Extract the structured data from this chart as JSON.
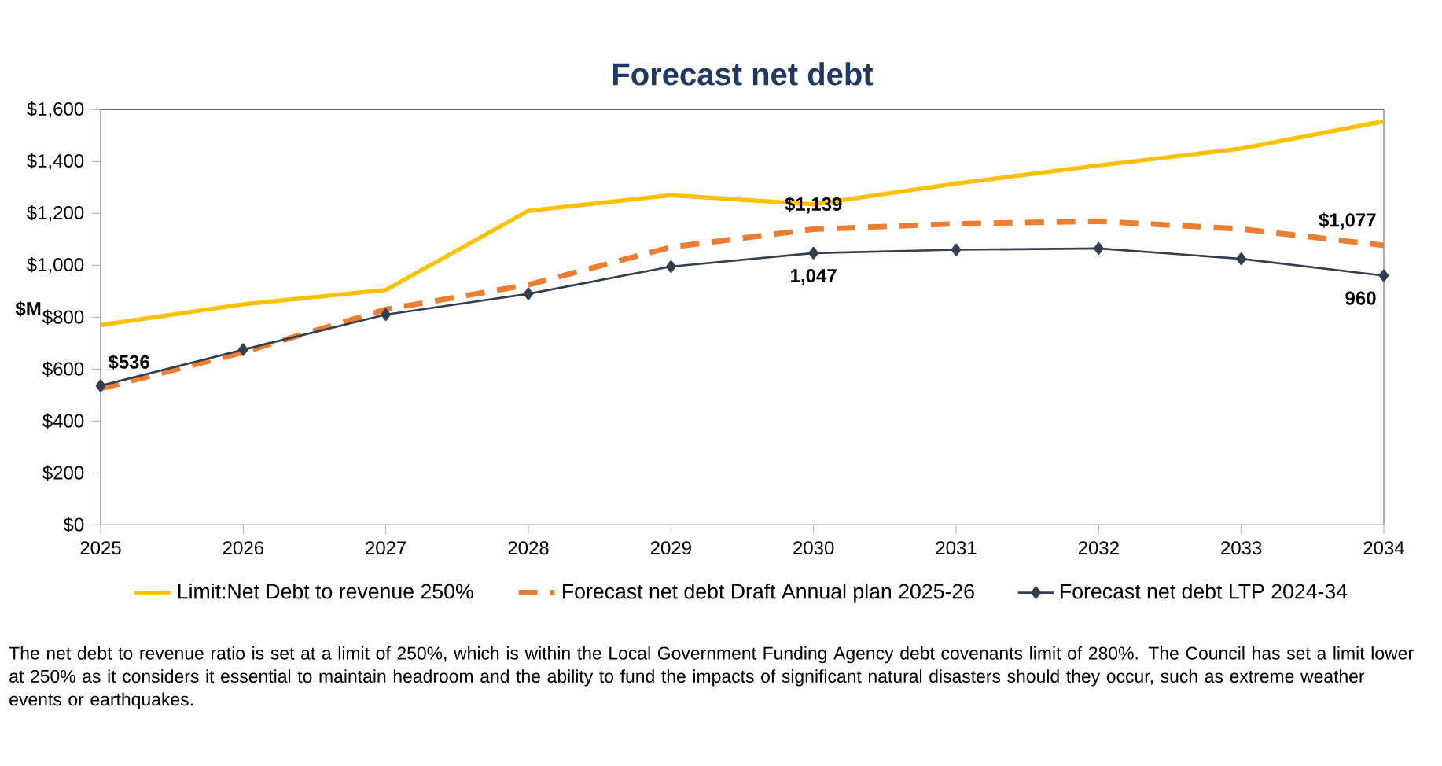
{
  "chart_data": {
    "type": "line",
    "title": "Forecast net debt",
    "ylabel": "$M",
    "categories": [
      "2025",
      "2026",
      "2027",
      "2028",
      "2029",
      "2030",
      "2031",
      "2032",
      "2033",
      "2034"
    ],
    "series": [
      {
        "name": "Limit:Net Debt to revenue 250%",
        "color": "#ffc000",
        "line_style": "solid",
        "marker": "none",
        "values": [
          770,
          850,
          905,
          1210,
          1270,
          1235,
          1315,
          1385,
          1450,
          1555
        ]
      },
      {
        "name": "Forecast net debt Draft Annual plan 2025-26",
        "color": "#ed7d31",
        "line_style": "dashed",
        "marker": "none",
        "values": [
          525,
          665,
          830,
          925,
          1070,
          1139,
          1160,
          1170,
          1140,
          1077
        ],
        "value_labels": [
          null,
          null,
          null,
          null,
          null,
          "$1,139",
          null,
          null,
          null,
          "$1,077"
        ]
      },
      {
        "name": "Forecast net debt LTP 2024-34",
        "color": "#333f50",
        "line_style": "solid",
        "marker": "diamond",
        "values": [
          536,
          675,
          810,
          890,
          995,
          1047,
          1060,
          1065,
          1025,
          960
        ],
        "value_labels": [
          "$536",
          null,
          null,
          null,
          null,
          "1,047",
          null,
          null,
          null,
          "960"
        ]
      }
    ],
    "ylim": [
      0,
      1600
    ],
    "yticks": [
      {
        "value": 0,
        "label": "$0"
      },
      {
        "value": 200,
        "label": "$200"
      },
      {
        "value": 400,
        "label": "$400"
      },
      {
        "value": 600,
        "label": "$600"
      },
      {
        "value": 800,
        "label": "$800"
      },
      {
        "value": 1000,
        "label": "$1,000"
      },
      {
        "value": 1200,
        "label": "$1,200"
      },
      {
        "value": 1400,
        "label": "$1,400"
      },
      {
        "value": 1600,
        "label": "$1,600"
      }
    ],
    "grid": false,
    "legend": "bottom",
    "annotations": [
      "The net debt to revenue ratio is set at a limit of 250%, which is within the Local Government Funding Agency debt covenants limit of 280%. The Council has set a limit lower at 250% as it considers it essential to maintain headroom and the ability to fund the impacts of significant natural disasters should they occur, such as extreme weather events or earthquakes."
    ]
  }
}
